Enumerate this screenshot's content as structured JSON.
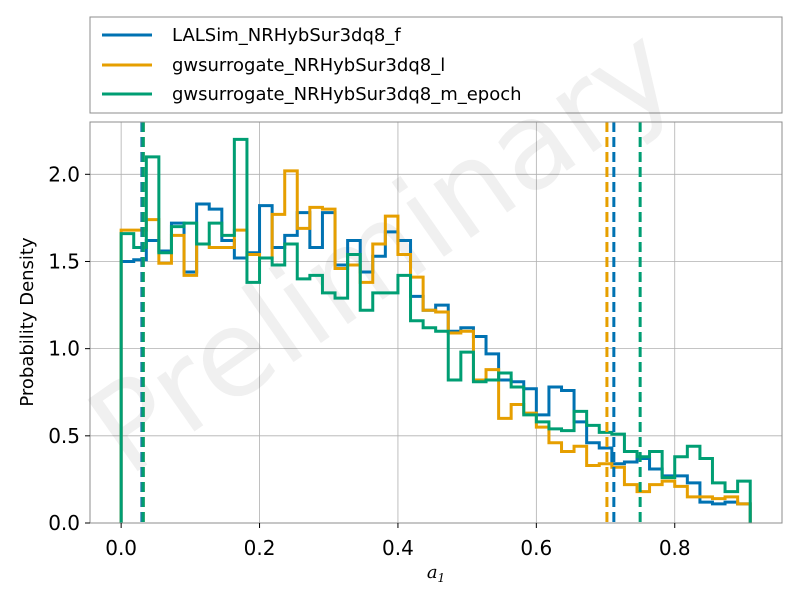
{
  "chart_data": {
    "type": "histogram-step",
    "title": "",
    "xlabel": "a",
    "xlabel_sub": "1",
    "ylabel": "Probability Density",
    "xlim": [
      -0.045,
      0.955
    ],
    "ylim": [
      0,
      2.3
    ],
    "xticks": [
      0.0,
      0.2,
      0.4,
      0.6,
      0.8
    ],
    "xtick_labels": [
      "0.0",
      "0.2",
      "0.4",
      "0.6",
      "0.8"
    ],
    "yticks": [
      0.0,
      0.5,
      1.0,
      1.5,
      2.0
    ],
    "ytick_labels": [
      "0.0",
      "0.5",
      "1.0",
      "1.5",
      "2.0"
    ],
    "grid": true,
    "legend_position": "above plot",
    "watermark": "Preliminary",
    "bin_edges": [
      0.0,
      0.0182,
      0.0364,
      0.0545,
      0.0727,
      0.0909,
      0.1091,
      0.1273,
      0.1455,
      0.1636,
      0.1818,
      0.2,
      0.2182,
      0.2364,
      0.2545,
      0.2727,
      0.2909,
      0.3091,
      0.3273,
      0.3455,
      0.3636,
      0.3818,
      0.4,
      0.4182,
      0.4364,
      0.4545,
      0.4727,
      0.4909,
      0.5091,
      0.5273,
      0.5455,
      0.5636,
      0.5818,
      0.6,
      0.6182,
      0.6364,
      0.6545,
      0.6727,
      0.6909,
      0.7091,
      0.7273,
      0.7455,
      0.7636,
      0.7818,
      0.8,
      0.8182,
      0.8364,
      0.8545,
      0.8727,
      0.8909,
      0.9091
    ],
    "series": [
      {
        "name": "LALSim_NRHybSur3dq8_f",
        "color": "#0072b2",
        "values": [
          1.5,
          1.51,
          1.62,
          1.56,
          1.72,
          1.44,
          1.83,
          1.8,
          1.62,
          1.52,
          1.55,
          1.82,
          1.58,
          1.65,
          1.78,
          1.58,
          1.78,
          1.48,
          1.62,
          1.44,
          1.53,
          1.67,
          1.62,
          1.3,
          1.22,
          1.25,
          1.1,
          1.12,
          1.07,
          0.97,
          0.82,
          0.81,
          0.77,
          0.62,
          0.78,
          0.76,
          0.58,
          0.46,
          0.43,
          0.34,
          0.35,
          0.37,
          0.31,
          0.27,
          0.27,
          0.23,
          0.12,
          0.11,
          0.12,
          0.11
        ],
        "vline": 0.712
      },
      {
        "name": "gwsurrogate_NRHybSur3dq8_l",
        "color": "#e69f00",
        "values": [
          1.68,
          1.68,
          1.74,
          1.49,
          1.65,
          1.42,
          1.6,
          1.58,
          1.58,
          1.68,
          1.54,
          1.52,
          1.77,
          2.02,
          1.69,
          1.81,
          1.8,
          1.46,
          1.48,
          1.38,
          1.6,
          1.76,
          1.54,
          1.41,
          1.22,
          1.21,
          1.09,
          1.1,
          0.82,
          0.88,
          0.6,
          0.68,
          0.63,
          0.55,
          0.46,
          0.41,
          0.44,
          0.33,
          0.34,
          0.32,
          0.22,
          0.18,
          0.22,
          0.24,
          0.21,
          0.15,
          0.15,
          0.14,
          0.15,
          0.11
        ],
        "vline": 0.702
      },
      {
        "name": "gwsurrogate_NRHybSur3dq8_m_epoch",
        "color": "#009e73",
        "values": [
          1.66,
          1.58,
          2.1,
          1.55,
          1.7,
          1.72,
          1.6,
          1.72,
          1.65,
          2.2,
          1.38,
          1.52,
          1.48,
          1.6,
          1.4,
          1.42,
          1.32,
          1.29,
          1.54,
          1.22,
          1.32,
          1.32,
          1.42,
          1.16,
          1.12,
          1.1,
          0.82,
          0.98,
          0.81,
          0.82,
          0.86,
          0.78,
          0.62,
          0.58,
          0.54,
          0.53,
          0.64,
          0.56,
          0.52,
          0.51,
          0.41,
          0.38,
          0.41,
          0.26,
          0.38,
          0.44,
          0.37,
          0.23,
          0.18,
          0.24
        ],
        "vline": 0.75
      }
    ],
    "extra_vline": {
      "x": 0.032,
      "color": "#009e73"
    }
  }
}
